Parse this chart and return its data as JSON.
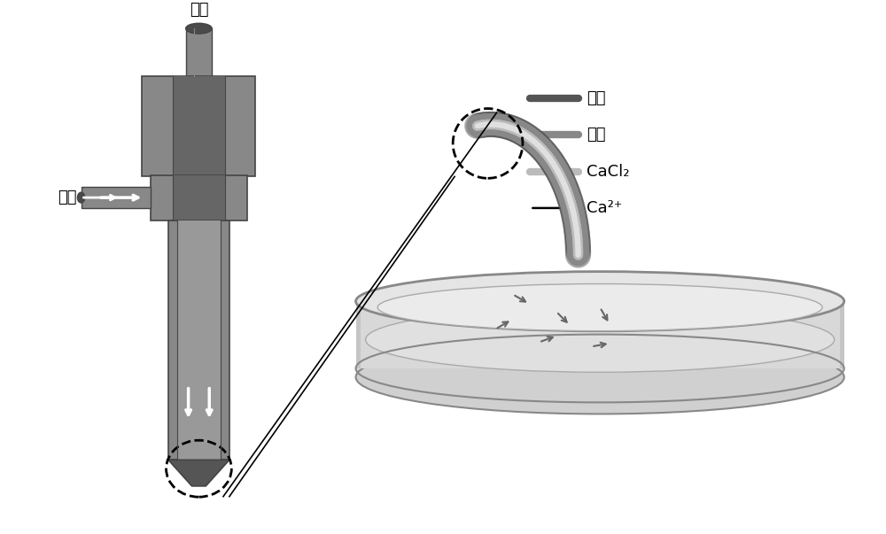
{
  "bg_color": "#ffffff",
  "dark_gray": "#555555",
  "mid_gray": "#888888",
  "light_gray": "#bbbbbb",
  "very_light_gray": "#dddddd",
  "darker_gray": "#444444",
  "needle_dark": "#4a4a4a",
  "needle_mid": "#666666",
  "needle_light": "#999999",
  "dish_color": "#d0d0d0",
  "dish_inner": "#e8e8e8",
  "tube_dark": "#555555",
  "tube_light": "#aaaaaa",
  "text_color": "#000000",
  "label_zhiye": "壳液",
  "label_xinye": "芜液",
  "label_cacl2": "CaCl₂",
  "label_ca2": "Ca²⁺",
  "figsize": [
    10.0,
    6.03
  ]
}
